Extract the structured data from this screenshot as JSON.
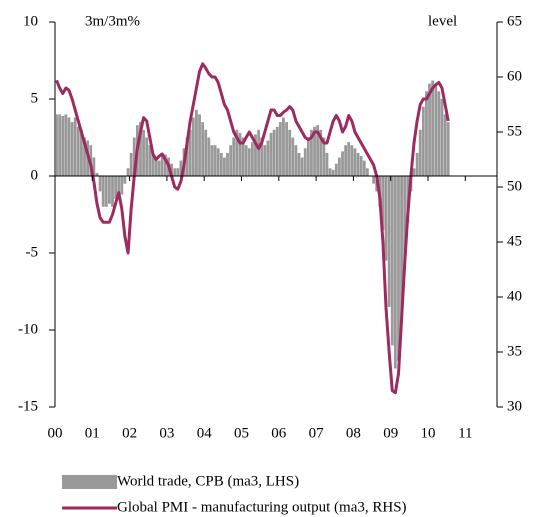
{
  "chart_data": {
    "type": "combo",
    "annotations": [
      "3m/3m%",
      "level"
    ],
    "x": [
      2000,
      2000.083,
      2000.167,
      2000.25,
      2000.333,
      2000.417,
      2000.5,
      2000.583,
      2000.667,
      2000.75,
      2000.833,
      2000.917,
      2001,
      2001.083,
      2001.167,
      2001.25,
      2001.333,
      2001.417,
      2001.5,
      2001.583,
      2001.667,
      2001.75,
      2001.833,
      2001.917,
      2002,
      2002.083,
      2002.167,
      2002.25,
      2002.333,
      2002.417,
      2002.5,
      2002.583,
      2002.667,
      2002.75,
      2002.833,
      2002.917,
      2003,
      2003.083,
      2003.167,
      2003.25,
      2003.333,
      2003.417,
      2003.5,
      2003.583,
      2003.667,
      2003.75,
      2003.833,
      2003.917,
      2004,
      2004.083,
      2004.167,
      2004.25,
      2004.333,
      2004.417,
      2004.5,
      2004.583,
      2004.667,
      2004.75,
      2004.833,
      2004.917,
      2005,
      2005.083,
      2005.167,
      2005.25,
      2005.333,
      2005.417,
      2005.5,
      2005.583,
      2005.667,
      2005.75,
      2005.833,
      2005.917,
      2006,
      2006.083,
      2006.167,
      2006.25,
      2006.333,
      2006.417,
      2006.5,
      2006.583,
      2006.667,
      2006.75,
      2006.833,
      2006.917,
      2007,
      2007.083,
      2007.167,
      2007.25,
      2007.333,
      2007.417,
      2007.5,
      2007.583,
      2007.667,
      2007.75,
      2007.833,
      2007.917,
      2008,
      2008.083,
      2008.167,
      2008.25,
      2008.333,
      2008.417,
      2008.5,
      2008.583,
      2008.667,
      2008.75,
      2008.833,
      2008.917,
      2009,
      2009.083,
      2009.167,
      2009.25,
      2009.333,
      2009.417,
      2009.5,
      2009.583,
      2009.667,
      2009.75,
      2009.833,
      2009.917,
      2010,
      2010.083,
      2010.167,
      2010.25,
      2010.333,
      2010.417,
      2010.5
    ],
    "series": [
      {
        "name": "World trade, CPB (ma3, LHS)",
        "type": "bar",
        "color": "#999999",
        "axis": "y",
        "values": [
          4,
          4,
          3.9,
          4,
          3.8,
          3.5,
          3.8,
          3.2,
          3,
          2.5,
          2.3,
          2,
          1.2,
          0.2,
          -1,
          -2,
          -2,
          -1.8,
          -2,
          -1.5,
          -1,
          -1.2,
          -0.5,
          0.5,
          1.5,
          2.5,
          3.3,
          3.5,
          3,
          2.5,
          2,
          1.5,
          1.2,
          1,
          1.3,
          1.4,
          1.2,
          0.8,
          0.5,
          0.5,
          1,
          1.8,
          2.5,
          3,
          3.8,
          4.3,
          4,
          3.5,
          3,
          2.5,
          2,
          2,
          1.8,
          1.5,
          1.2,
          1.5,
          2,
          2.5,
          3,
          2.8,
          2.5,
          2,
          1.8,
          2.2,
          2.7,
          3,
          2.5,
          2,
          2.3,
          2.8,
          3,
          3.2,
          3.5,
          3.8,
          3.5,
          3,
          2.5,
          2,
          1.5,
          1.2,
          1.8,
          2.5,
          3,
          3.2,
          3.3,
          3,
          2.5,
          1.5,
          0.5,
          0.4,
          0.8,
          1.2,
          1.6,
          2,
          2.2,
          2,
          1.8,
          1.5,
          1.3,
          1,
          0.5,
          0,
          -0.5,
          -1,
          -2,
          -3.5,
          -5.5,
          -8.5,
          -11,
          -12.5,
          -12,
          -9.5,
          -6,
          -3,
          -1,
          0.5,
          1.5,
          3,
          4.5,
          5.5,
          6,
          6.2,
          6,
          5.5,
          5,
          4,
          3.5
        ]
      },
      {
        "name": "Global PMI - manufacturing output (ma3, RHS)",
        "type": "line",
        "color": "#9e2a5f",
        "axis": "y2",
        "values": [
          59.7,
          59,
          58.5,
          59,
          58.8,
          58,
          57,
          56,
          55,
          54,
          53,
          52,
          50.5,
          48.5,
          47.2,
          46.8,
          46.8,
          46.8,
          47.5,
          48.5,
          49.5,
          48,
          45.5,
          44,
          48,
          51,
          53.5,
          55,
          56.3,
          56,
          54.5,
          53,
          52.5,
          52.8,
          53,
          52.5,
          52,
          51,
          50,
          49.8,
          50.5,
          52,
          54,
          56,
          57.5,
          59,
          60.5,
          61.2,
          60.8,
          60.3,
          60,
          60,
          59.5,
          58.5,
          57.5,
          57,
          56,
          55,
          54.5,
          54,
          54,
          54.5,
          55,
          54.5,
          54,
          53.5,
          54,
          55,
          56,
          57,
          57,
          56.5,
          56.5,
          56.8,
          57,
          57.3,
          57,
          56,
          55.5,
          55,
          54.5,
          54.3,
          54.5,
          55,
          55,
          54.5,
          54,
          54,
          55,
          56,
          56.5,
          56,
          55,
          55.5,
          56.5,
          56,
          55,
          54.5,
          54,
          53.5,
          53,
          52.5,
          52,
          51,
          49,
          45,
          39,
          35,
          31.5,
          31.3,
          33,
          38,
          43,
          47.5,
          51,
          54,
          56,
          57.5,
          58,
          58,
          58.5,
          59,
          59.3,
          59.5,
          59,
          57.5,
          56
        ]
      }
    ],
    "xlim": [
      2000,
      2011.85
    ],
    "xticks": [
      {
        "value": 2000,
        "label": "00"
      },
      {
        "value": 2001,
        "label": "01"
      },
      {
        "value": 2002,
        "label": "02"
      },
      {
        "value": 2003,
        "label": "03"
      },
      {
        "value": 2004,
        "label": "04"
      },
      {
        "value": 2005,
        "label": "05"
      },
      {
        "value": 2006,
        "label": "06"
      },
      {
        "value": 2007,
        "label": "07"
      },
      {
        "value": 2008,
        "label": "08"
      },
      {
        "value": 2009,
        "label": "09"
      },
      {
        "value": 2010,
        "label": "10"
      },
      {
        "value": 2011,
        "label": "11"
      }
    ],
    "ylim": [
      -15,
      10
    ],
    "yticks": [
      -15,
      -10,
      -5,
      0,
      5,
      10
    ],
    "y2lim": [
      30,
      65
    ],
    "y2ticks": [
      30,
      35,
      40,
      45,
      50,
      55,
      60,
      65
    ]
  }
}
